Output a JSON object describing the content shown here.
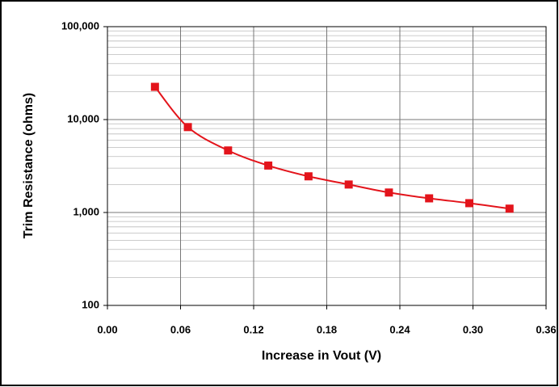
{
  "chart_data": {
    "type": "line",
    "x_label": "Increase in Vout (V)",
    "y_label": "Trim Resistance (ohms)",
    "log_y": true,
    "grid": true,
    "series": [
      {
        "name": null,
        "color": "#e3141b",
        "x": [
          0.039,
          0.066,
          0.099,
          0.132,
          0.165,
          0.198,
          0.231,
          0.264,
          0.297,
          0.33
        ],
        "values": [
          22500,
          8300,
          4650,
          3200,
          2450,
          2000,
          1640,
          1420,
          1260,
          1100
        ]
      }
    ],
    "xlim": [
      0,
      0.36
    ],
    "xticks": [
      {
        "value": 0,
        "label": "0.00"
      },
      0.06,
      0.12,
      0.18,
      0.24,
      {
        "value": 0.3,
        "label": "0.30"
      },
      0.36
    ],
    "ylim": [
      100,
      100000
    ],
    "yticks": [
      100,
      {
        "value": 1000,
        "label": "1,000"
      },
      {
        "value": 10000,
        "label": "10,000"
      },
      {
        "value": 100000,
        "label": "100,000"
      }
    ]
  }
}
